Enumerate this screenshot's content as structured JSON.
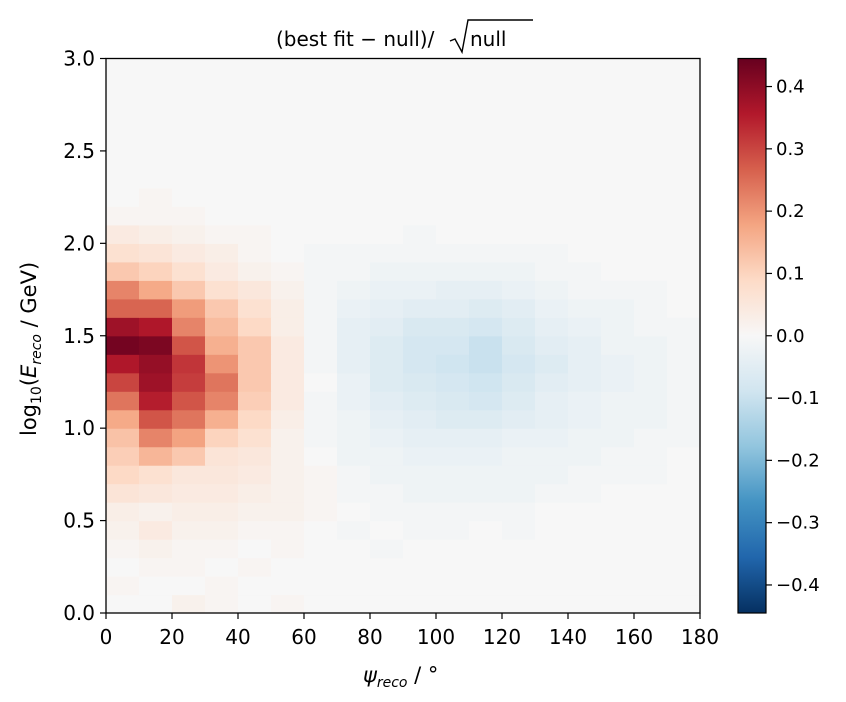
{
  "chart_data": {
    "type": "heatmap",
    "title": "(best fit − null)/√null",
    "title_parts": {
      "prefix": "(best fit − null)/",
      "sqrt_sign": "√",
      "radicand": "null"
    },
    "xlabel": "ψreco / °",
    "xlabel_parts": {
      "symbol": "ψ",
      "subscript": "reco",
      "unit": " / °"
    },
    "ylabel": "log10(Ereco / GeV)",
    "ylabel_parts": {
      "log": "log",
      "log_sub": "10",
      "open": "(",
      "symbol": "E",
      "subscript": "reco",
      "unit": " / GeV)"
    },
    "xlim": [
      0,
      180
    ],
    "ylim": [
      0,
      3.0
    ],
    "xticks": [
      "0",
      "20",
      "40",
      "60",
      "80",
      "100",
      "120",
      "140",
      "160",
      "180"
    ],
    "yticks": [
      "0.0",
      "0.5",
      "1.0",
      "1.5",
      "2.0",
      "2.5",
      "3.0"
    ],
    "x_bin_edges": [
      0,
      10,
      20,
      30,
      40,
      50,
      60,
      70,
      80,
      90,
      100,
      110,
      120,
      130,
      140,
      150,
      160,
      170,
      180
    ],
    "y_bin_edges": [
      0.0,
      0.1,
      0.2,
      0.3,
      0.4,
      0.5,
      0.6,
      0.7,
      0.8,
      0.9,
      1.0,
      1.1,
      1.2,
      1.3,
      1.4,
      1.5,
      1.6,
      1.7,
      1.8,
      1.9,
      2.0,
      2.1,
      2.2,
      2.3,
      2.4,
      2.5,
      2.6,
      2.7,
      2.8,
      2.9,
      3.0
    ],
    "z_values_rows_from_bottom": [
      [
        0.0,
        0.0,
        0.02,
        0.01,
        0.0,
        0.01,
        0.0,
        0.0,
        0.0,
        0.0,
        0.0,
        0.0,
        0.0,
        0.0,
        0.0,
        0.0,
        0.0,
        0.0
      ],
      [
        0.01,
        0.0,
        0.0,
        0.01,
        0.0,
        0.0,
        0.0,
        0.0,
        0.0,
        0.0,
        0.0,
        0.0,
        0.0,
        0.0,
        0.0,
        0.0,
        0.0,
        0.0
      ],
      [
        0.0,
        0.01,
        0.01,
        0.0,
        0.01,
        0.0,
        0.0,
        0.0,
        0.0,
        0.0,
        0.0,
        0.0,
        0.0,
        0.0,
        0.0,
        0.0,
        0.0,
        0.0
      ],
      [
        0.01,
        0.02,
        0.01,
        0.01,
        0.0,
        0.01,
        0.0,
        0.0,
        -0.01,
        0.0,
        0.0,
        0.0,
        0.0,
        0.0,
        0.0,
        0.0,
        0.0,
        0.0
      ],
      [
        0.02,
        0.04,
        0.02,
        0.02,
        0.01,
        0.01,
        0.0,
        -0.01,
        0.0,
        -0.01,
        -0.01,
        0.0,
        -0.01,
        0.0,
        0.0,
        0.0,
        0.0,
        0.0
      ],
      [
        0.03,
        0.02,
        0.03,
        0.03,
        0.02,
        0.02,
        0.01,
        0.0,
        -0.01,
        -0.01,
        -0.01,
        -0.01,
        -0.01,
        0.0,
        0.0,
        0.0,
        0.0,
        0.0
      ],
      [
        0.06,
        0.05,
        0.04,
        0.04,
        0.03,
        0.02,
        0.01,
        -0.01,
        -0.01,
        -0.02,
        -0.02,
        -0.02,
        -0.02,
        -0.01,
        -0.01,
        0.0,
        0.0,
        0.0
      ],
      [
        0.09,
        0.07,
        0.05,
        0.05,
        0.04,
        0.02,
        0.01,
        -0.01,
        -0.02,
        -0.02,
        -0.02,
        -0.02,
        -0.02,
        -0.02,
        -0.01,
        -0.01,
        -0.01,
        0.0
      ],
      [
        0.11,
        0.15,
        0.12,
        0.06,
        0.05,
        0.02,
        0.0,
        -0.02,
        -0.02,
        -0.03,
        -0.03,
        -0.03,
        -0.02,
        -0.02,
        -0.02,
        -0.01,
        -0.01,
        0.0
      ],
      [
        0.13,
        0.22,
        0.18,
        0.1,
        0.07,
        0.02,
        -0.01,
        -0.02,
        -0.03,
        -0.04,
        -0.04,
        -0.04,
        -0.03,
        -0.03,
        -0.02,
        -0.02,
        -0.01,
        -0.01
      ],
      [
        0.17,
        0.28,
        0.24,
        0.16,
        0.09,
        0.03,
        -0.01,
        -0.02,
        -0.04,
        -0.05,
        -0.06,
        -0.06,
        -0.05,
        -0.04,
        -0.03,
        -0.02,
        -0.02,
        -0.01
      ],
      [
        0.24,
        0.35,
        0.28,
        0.22,
        0.11,
        0.04,
        -0.01,
        -0.03,
        -0.05,
        -0.06,
        -0.07,
        -0.08,
        -0.06,
        -0.04,
        -0.03,
        -0.02,
        -0.02,
        -0.01
      ],
      [
        0.3,
        0.38,
        0.31,
        0.24,
        0.12,
        0.04,
        0.0,
        -0.03,
        -0.06,
        -0.07,
        -0.08,
        -0.09,
        -0.07,
        -0.05,
        -0.04,
        -0.03,
        -0.02,
        -0.01
      ],
      [
        0.36,
        0.39,
        0.32,
        0.2,
        0.12,
        0.04,
        -0.01,
        -0.04,
        -0.06,
        -0.08,
        -0.09,
        -0.1,
        -0.08,
        -0.06,
        -0.04,
        -0.03,
        -0.02,
        -0.01
      ],
      [
        0.43,
        0.42,
        0.28,
        0.16,
        0.12,
        0.04,
        -0.01,
        -0.04,
        -0.06,
        -0.08,
        -0.08,
        -0.1,
        -0.07,
        -0.05,
        -0.04,
        -0.02,
        -0.02,
        -0.01
      ],
      [
        0.38,
        0.36,
        0.22,
        0.14,
        0.09,
        0.03,
        -0.01,
        -0.04,
        -0.05,
        -0.07,
        -0.07,
        -0.08,
        -0.06,
        -0.04,
        -0.03,
        -0.02,
        -0.01,
        -0.01
      ],
      [
        0.26,
        0.26,
        0.19,
        0.12,
        0.07,
        0.03,
        -0.01,
        -0.03,
        -0.04,
        -0.05,
        -0.05,
        -0.06,
        -0.05,
        -0.03,
        -0.02,
        -0.02,
        -0.01,
        0.0
      ],
      [
        0.22,
        0.17,
        0.12,
        0.07,
        0.05,
        0.02,
        -0.01,
        -0.02,
        -0.03,
        -0.03,
        -0.04,
        -0.04,
        -0.03,
        -0.02,
        -0.01,
        -0.01,
        -0.01,
        0.0
      ],
      [
        0.12,
        0.1,
        0.07,
        0.04,
        0.02,
        0.01,
        -0.01,
        -0.01,
        -0.02,
        -0.02,
        -0.02,
        -0.02,
        -0.02,
        -0.01,
        -0.01,
        0.0,
        0.0,
        0.0
      ],
      [
        0.07,
        0.06,
        0.04,
        0.03,
        0.01,
        0.0,
        -0.01,
        -0.01,
        -0.01,
        -0.01,
        -0.01,
        -0.01,
        -0.01,
        -0.01,
        0.0,
        0.0,
        0.0,
        0.0
      ],
      [
        0.04,
        0.03,
        0.02,
        0.01,
        0.01,
        0.0,
        0.0,
        0.0,
        0.0,
        -0.01,
        0.0,
        0.0,
        0.0,
        0.0,
        0.0,
        0.0,
        0.0,
        0.0
      ],
      [
        0.01,
        0.01,
        0.01,
        0.0,
        0.0,
        0.0,
        0.0,
        0.0,
        0.0,
        0.0,
        0.0,
        0.0,
        0.0,
        0.0,
        0.0,
        0.0,
        0.0,
        0.0
      ],
      [
        0.0,
        0.01,
        0.0,
        0.0,
        0.0,
        0.0,
        0.0,
        0.0,
        0.0,
        0.0,
        0.0,
        0.0,
        0.0,
        0.0,
        0.0,
        0.0,
        0.0,
        0.0
      ],
      [
        0.0,
        0.0,
        0.0,
        0.0,
        0.0,
        0.0,
        0.0,
        0.0,
        0.0,
        0.0,
        0.0,
        0.0,
        0.0,
        0.0,
        0.0,
        0.0,
        0.0,
        0.0
      ],
      [
        0.0,
        0.0,
        0.0,
        0.0,
        0.0,
        0.0,
        0.0,
        0.0,
        0.0,
        0.0,
        0.0,
        0.0,
        0.0,
        0.0,
        0.0,
        0.0,
        0.0,
        0.0
      ],
      [
        0.0,
        0.0,
        0.0,
        0.0,
        0.0,
        0.0,
        0.0,
        0.0,
        0.0,
        0.0,
        0.0,
        0.0,
        0.0,
        0.0,
        0.0,
        0.0,
        0.0,
        0.0
      ],
      [
        0.0,
        0.0,
        0.0,
        0.0,
        0.0,
        0.0,
        0.0,
        0.0,
        0.0,
        0.0,
        0.0,
        0.0,
        0.0,
        0.0,
        0.0,
        0.0,
        0.0,
        0.0
      ],
      [
        0.0,
        0.0,
        0.0,
        0.0,
        0.0,
        0.0,
        0.0,
        0.0,
        0.0,
        0.0,
        0.0,
        0.0,
        0.0,
        0.0,
        0.0,
        0.0,
        0.0,
        0.0
      ],
      [
        0.0,
        0.0,
        0.0,
        0.0,
        0.0,
        0.0,
        0.0,
        0.0,
        0.0,
        0.0,
        0.0,
        0.0,
        0.0,
        0.0,
        0.0,
        0.0,
        0.0,
        0.0
      ],
      [
        0.0,
        0.0,
        0.0,
        0.0,
        0.0,
        0.0,
        0.0,
        0.0,
        0.0,
        0.0,
        0.0,
        0.0,
        0.0,
        0.0,
        0.0,
        0.0,
        0.0,
        0.0
      ]
    ],
    "colorbar": {
      "colormap": "RdBu_r",
      "vmin": -0.445,
      "vmax": 0.445,
      "ticks": [
        -0.4,
        -0.3,
        -0.2,
        -0.1,
        0.0,
        0.1,
        0.2,
        0.3,
        0.4
      ],
      "tick_labels": [
        "−0.4",
        "−0.3",
        "−0.2",
        "−0.1",
        "0.0",
        "0.1",
        "0.2",
        "0.3",
        "0.4"
      ]
    },
    "colormap_stops": [
      "#053061",
      "#2166ac",
      "#4393c3",
      "#92c5de",
      "#d1e5f0",
      "#f7f7f7",
      "#fddbc7",
      "#f4a582",
      "#d6604d",
      "#b2182b",
      "#67001f"
    ],
    "grid": false,
    "legend": "none"
  }
}
